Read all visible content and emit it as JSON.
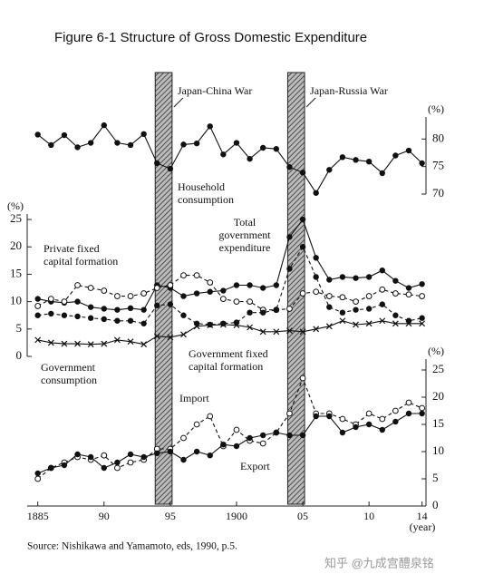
{
  "title": "Figure 6-1   Structure of Gross Domestic Expenditure",
  "source": "Source: Nishikawa and Yamamoto, eds, 1990, p.5.",
  "watermark": "知乎 @九成宫醴泉铭",
  "chart_data": [
    {
      "type": "line",
      "y_axis_side": "right",
      "y_unit": "(%)",
      "ylim": [
        70,
        84
      ],
      "yticks": [
        70,
        75,
        80
      ],
      "shaded_periods": [
        {
          "label": "Japan-China War",
          "start": 1894,
          "end": 1895
        },
        {
          "label": "Japan-Russia War",
          "start": 1904,
          "end": 1905
        }
      ],
      "annotations": [
        [
          "Household",
          "consumption"
        ]
      ],
      "x": [
        1885,
        1886,
        1887,
        1888,
        1889,
        1890,
        1891,
        1892,
        1893,
        1894,
        1895,
        1896,
        1897,
        1898,
        1899,
        1900,
        1901,
        1902,
        1903,
        1904,
        1905,
        1906,
        1907,
        1908,
        1909,
        1910,
        1911,
        1912,
        1913,
        1914
      ],
      "series": [
        {
          "name": "Household consumption",
          "color": "#111111",
          "marker": "filled",
          "dashed": false,
          "values": [
            80.8,
            78.9,
            80.7,
            78.5,
            79.3,
            82.5,
            79.3,
            78.9,
            80.9,
            75.6,
            74.6,
            79.0,
            79.2,
            82.3,
            77.2,
            79.3,
            76.4,
            78.4,
            78.2,
            74.9,
            73.9,
            70.2,
            74.4,
            76.7,
            76.2,
            75.9,
            73.8,
            77.0,
            77.9,
            75.6
          ]
        }
      ]
    },
    {
      "type": "line",
      "y_axis_side": "left",
      "y_unit": "(%)",
      "ylim": [
        0,
        26
      ],
      "yticks": [
        0,
        5,
        10,
        15,
        20,
        25
      ],
      "annotations": [
        [
          "Total",
          "government",
          "expenditure"
        ],
        [
          "Private fixed",
          "capital formation"
        ],
        [
          "Government",
          "consumption"
        ],
        [
          "Government fixed",
          "capital formation"
        ]
      ],
      "x": [
        1885,
        1886,
        1887,
        1888,
        1889,
        1890,
        1891,
        1892,
        1893,
        1894,
        1895,
        1896,
        1897,
        1898,
        1899,
        1900,
        1901,
        1902,
        1903,
        1904,
        1905,
        1906,
        1907,
        1908,
        1909,
        1910,
        1911,
        1912,
        1913,
        1914
      ],
      "series": [
        {
          "name": "Total government expenditure",
          "color": "#111111",
          "marker": "filled",
          "dashed": false,
          "values": [
            10.5,
            10,
            9.8,
            10,
            9,
            8.7,
            8.5,
            8.8,
            8.5,
            13,
            12.5,
            11,
            11.5,
            11.8,
            12,
            13,
            13,
            12.5,
            13,
            21.8,
            25,
            18,
            14,
            14.5,
            14.3,
            14.5,
            15.7,
            13.8,
            12.5,
            13.2
          ]
        },
        {
          "name": "Private fixed capital formation",
          "color": "#111111",
          "marker": "open",
          "dashed": true,
          "values": [
            9.2,
            10.5,
            10,
            13,
            12.5,
            12,
            11,
            11,
            11.5,
            12.5,
            13,
            14.8,
            14.8,
            13.5,
            10.5,
            10,
            10,
            8.5,
            8.5,
            8.7,
            11.5,
            11.8,
            11,
            10.8,
            10,
            11,
            12.2,
            11.5,
            11.3,
            11
          ]
        },
        {
          "name": "Government consumption",
          "color": "#111111",
          "marker": "filled",
          "dashed": true,
          "values": [
            7.5,
            7.8,
            7.5,
            7.3,
            7,
            6.8,
            6.5,
            6.5,
            6,
            9.3,
            9.5,
            7.5,
            6,
            5.8,
            6,
            6.2,
            8,
            8,
            8.5,
            16,
            20,
            14.5,
            9,
            8,
            8.5,
            8.7,
            9.5,
            7.5,
            6.5,
            7
          ]
        },
        {
          "name": "Government fixed capital formation",
          "color": "#111111",
          "marker": "x",
          "dashed": false,
          "values": [
            3,
            2.5,
            2.3,
            2.3,
            2.2,
            2.3,
            3,
            2.7,
            2.2,
            3.7,
            3.5,
            4,
            5.5,
            5.7,
            5.8,
            5.7,
            5.3,
            4.5,
            4.5,
            4.7,
            4.5,
            5,
            5.5,
            6.5,
            5.8,
            6,
            6.5,
            6,
            6,
            6
          ]
        }
      ]
    },
    {
      "type": "line",
      "y_axis_side": "right",
      "y_unit": "(%)",
      "ylim": [
        0,
        27
      ],
      "yticks": [
        0,
        5,
        10,
        15,
        20,
        25
      ],
      "xlim": [
        1884.2,
        1914.3
      ],
      "xticks": [
        1885,
        {
          "value": 1890,
          "label": "90"
        },
        {
          "value": 1895,
          "label": "95"
        },
        1900,
        {
          "value": 1905,
          "label": "05"
        },
        {
          "value": 1910,
          "label": "10"
        },
        {
          "value": 1914,
          "label": "14"
        }
      ],
      "x_label": "(year)",
      "annotations": [
        [
          "Import"
        ],
        [
          "Export"
        ]
      ],
      "x": [
        1885,
        1886,
        1887,
        1888,
        1889,
        1890,
        1891,
        1892,
        1893,
        1894,
        1895,
        1896,
        1897,
        1898,
        1899,
        1900,
        1901,
        1902,
        1903,
        1904,
        1905,
        1906,
        1907,
        1908,
        1909,
        1910,
        1911,
        1912,
        1913,
        1914
      ],
      "series": [
        {
          "name": "Import",
          "color": "#111111",
          "marker": "open",
          "dashed": true,
          "values": [
            5,
            7,
            8,
            9,
            8.5,
            9.3,
            7,
            8,
            8.5,
            10.5,
            10.5,
            12.5,
            15,
            16.5,
            11,
            14,
            12,
            11.5,
            13.5,
            17,
            23.5,
            17,
            17,
            16,
            15,
            17,
            16,
            17.5,
            19,
            18
          ]
        },
        {
          "name": "Export",
          "color": "#111111",
          "marker": "filled",
          "dashed": false,
          "values": [
            6,
            7,
            7.5,
            9.5,
            9,
            7,
            8,
            9.5,
            9,
            9.7,
            10,
            8.5,
            10,
            9.3,
            11.3,
            11,
            12.5,
            13,
            13.5,
            13,
            13,
            16.5,
            16.5,
            13.5,
            14.5,
            15,
            14,
            15.5,
            17,
            17
          ]
        }
      ]
    }
  ]
}
